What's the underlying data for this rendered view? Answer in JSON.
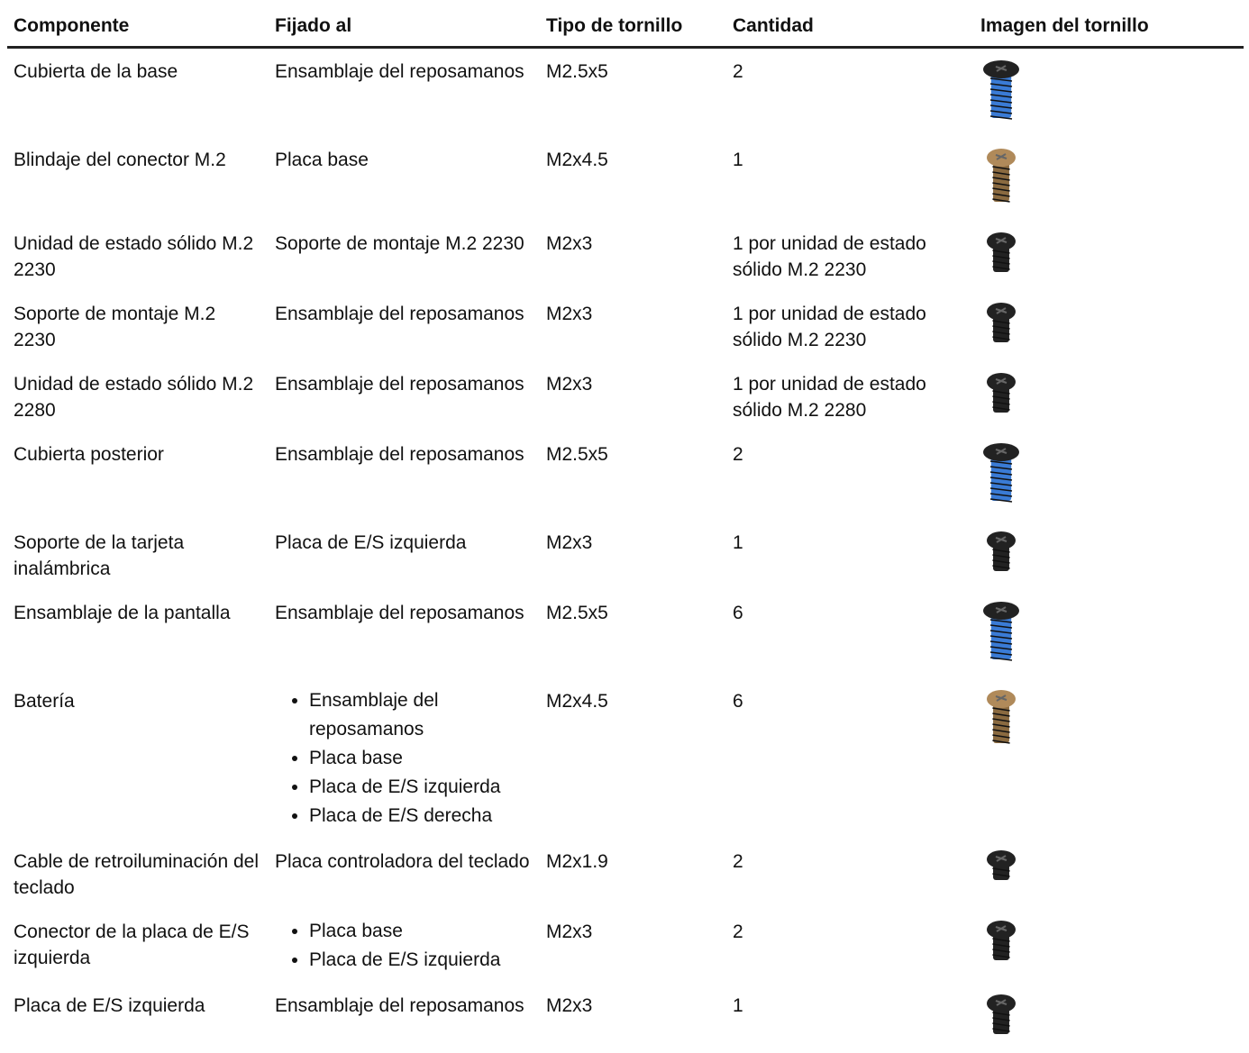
{
  "table": {
    "headers": [
      "Componente",
      "Fijado al",
      "Tipo de tornillo",
      "Cantidad",
      "Imagen del tornillo"
    ],
    "rows": [
      [
        "Cubierta de la base",
        "Ensamblaje del reposamanos",
        "M2.5x5",
        "2"
      ],
      [
        "Blindaje del conector M.2",
        "Placa base",
        "M2x4.5",
        "1"
      ],
      [
        "Unidad de estado sólido M.2 2230",
        "Soporte de montaje M.2 2230",
        "M2x3",
        "1 por unidad de estado sólido M.2 2230"
      ],
      [
        "Soporte de montaje M.2 2230",
        "Ensamblaje del reposamanos",
        "M2x3",
        "1 por unidad de estado sólido M.2 2230"
      ],
      [
        "Unidad de estado sólido M.2 2280",
        "Ensamblaje del reposamanos",
        "M2x3",
        "1 por unidad de estado sólido M.2 2280"
      ],
      [
        "Cubierta posterior",
        "Ensamblaje del reposamanos",
        "M2.5x5",
        "2"
      ],
      [
        "Soporte de la tarjeta inalámbrica",
        "Placa de E/S izquierda",
        "M2x3",
        "1"
      ],
      [
        "Ensamblaje de la pantalla",
        "Ensamblaje del reposamanos",
        "M2.5x5",
        "6"
      ],
      [
        "Batería",
        [
          "Ensamblaje del reposamanos",
          "Placa base",
          "Placa de E/S izquierda",
          "Placa de E/S derecha"
        ],
        "M2x4.5",
        "6"
      ],
      [
        "Cable de retroiluminación del teclado",
        "Placa controladora del teclado",
        "M2x1.9",
        "2"
      ],
      [
        "Conector de la placa de E/S izquierda",
        [
          "Placa base",
          "Placa de E/S izquierda"
        ],
        "M2x3",
        "2"
      ],
      [
        "Placa de E/S izquierda",
        "Ensamblaje del reposamanos",
        "M2x3",
        "1"
      ]
    ]
  }
}
